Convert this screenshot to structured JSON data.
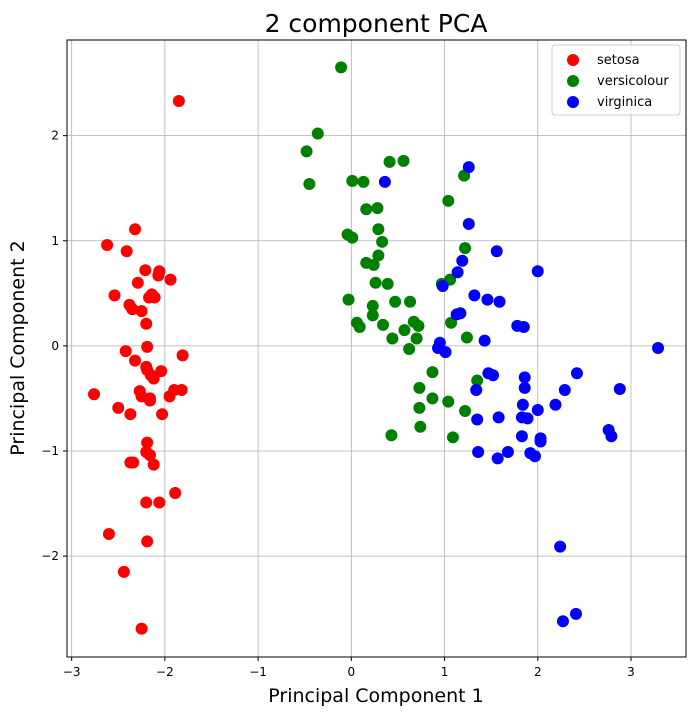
{
  "chart_data": {
    "type": "scatter",
    "title": "2 component PCA",
    "xlabel": "Principal Component 1",
    "ylabel": "Principal Component 2",
    "xlim": [
      -3.05,
      3.59
    ],
    "ylim": [
      -2.96,
      2.91
    ],
    "xticks": [
      -3,
      -2,
      -1,
      0,
      1,
      2,
      3
    ],
    "yticks": [
      -2,
      -1,
      0,
      1,
      2
    ],
    "xtick_labels": [
      "−3",
      "−2",
      "−1",
      "0",
      "1",
      "2",
      "3"
    ],
    "ytick_labels": [
      "−2",
      "−1",
      "0",
      "1",
      "2"
    ],
    "grid": true,
    "legend_position": "top-right",
    "series": [
      {
        "name": "setosa",
        "color": "#ff0000",
        "points": [
          [
            -1.85,
            2.33
          ],
          [
            -2.32,
            1.11
          ],
          [
            -2.62,
            0.96
          ],
          [
            -2.41,
            0.9
          ],
          [
            -2.21,
            0.72
          ],
          [
            -2.06,
            0.71
          ],
          [
            -2.07,
            0.67
          ],
          [
            -1.94,
            0.63
          ],
          [
            -2.29,
            0.6
          ],
          [
            -2.14,
            0.49
          ],
          [
            -2.11,
            0.46
          ],
          [
            -2.17,
            0.46
          ],
          [
            -2.54,
            0.48
          ],
          [
            -2.38,
            0.39
          ],
          [
            -2.35,
            0.35
          ],
          [
            -2.25,
            0.33
          ],
          [
            -2.2,
            0.21
          ],
          [
            -2.19,
            -0.01
          ],
          [
            -2.42,
            -0.05
          ],
          [
            -1.81,
            -0.09
          ],
          [
            -2.32,
            -0.14
          ],
          [
            -2.2,
            -0.2
          ],
          [
            -2.19,
            -0.23
          ],
          [
            -2.15,
            -0.28
          ],
          [
            -2.12,
            -0.31
          ],
          [
            -2.04,
            -0.24
          ],
          [
            -2.76,
            -0.46
          ],
          [
            -2.27,
            -0.43
          ],
          [
            -2.25,
            -0.48
          ],
          [
            -2.16,
            -0.52
          ],
          [
            -2.16,
            -0.5
          ],
          [
            -1.9,
            -0.42
          ],
          [
            -1.82,
            -0.42
          ],
          [
            -1.95,
            -0.48
          ],
          [
            -2.5,
            -0.59
          ],
          [
            -2.37,
            -0.65
          ],
          [
            -2.03,
            -0.65
          ],
          [
            -2.19,
            -0.92
          ],
          [
            -2.2,
            -1.01
          ],
          [
            -2.16,
            -1.04
          ],
          [
            -2.37,
            -1.11
          ],
          [
            -2.34,
            -1.11
          ],
          [
            -2.12,
            -1.13
          ],
          [
            -1.89,
            -1.4
          ],
          [
            -2.2,
            -1.49
          ],
          [
            -2.06,
            -1.49
          ],
          [
            -2.6,
            -1.79
          ],
          [
            -2.19,
            -1.86
          ],
          [
            -2.44,
            -2.15
          ],
          [
            -2.25,
            -2.69
          ]
        ]
      },
      {
        "name": "versicolour",
        "color": "#008000",
        "points": [
          [
            -0.11,
            2.65
          ],
          [
            -0.36,
            2.02
          ],
          [
            -0.48,
            1.85
          ],
          [
            -0.45,
            1.54
          ],
          [
            0.01,
            1.57
          ],
          [
            0.13,
            1.56
          ],
          [
            0.41,
            1.75
          ],
          [
            0.56,
            1.76
          ],
          [
            1.04,
            1.38
          ],
          [
            1.21,
            1.62
          ],
          [
            0.16,
            1.3
          ],
          [
            0.28,
            1.31
          ],
          [
            -0.04,
            1.06
          ],
          [
            0.01,
            1.03
          ],
          [
            0.29,
            1.11
          ],
          [
            0.33,
            0.99
          ],
          [
            0.29,
            0.86
          ],
          [
            0.16,
            0.79
          ],
          [
            0.24,
            0.77
          ],
          [
            1.22,
            0.93
          ],
          [
            0.26,
            0.6
          ],
          [
            0.39,
            0.59
          ],
          [
            1.06,
            0.63
          ],
          [
            0.97,
            0.59
          ],
          [
            -0.03,
            0.44
          ],
          [
            0.47,
            0.42
          ],
          [
            0.63,
            0.42
          ],
          [
            0.23,
            0.38
          ],
          [
            0.23,
            0.29
          ],
          [
            0.06,
            0.22
          ],
          [
            0.09,
            0.18
          ],
          [
            0.67,
            0.23
          ],
          [
            0.72,
            0.19
          ],
          [
            1.07,
            0.22
          ],
          [
            0.57,
            0.15
          ],
          [
            0.34,
            0.2
          ],
          [
            0.44,
            0.07
          ],
          [
            0.7,
            0.07
          ],
          [
            1.24,
            0.08
          ],
          [
            0.62,
            -0.03
          ],
          [
            0.87,
            -0.25
          ],
          [
            1.35,
            -0.33
          ],
          [
            0.73,
            -0.4
          ],
          [
            0.87,
            -0.5
          ],
          [
            1.04,
            -0.53
          ],
          [
            0.73,
            -0.59
          ],
          [
            1.22,
            -0.62
          ],
          [
            0.74,
            -0.77
          ],
          [
            0.43,
            -0.85
          ],
          [
            1.09,
            -0.87
          ]
        ]
      },
      {
        "name": "virginica",
        "color": "#0000ff",
        "points": [
          [
            0.36,
            1.56
          ],
          [
            1.26,
            1.7
          ],
          [
            1.26,
            1.16
          ],
          [
            1.56,
            0.9
          ],
          [
            2.0,
            0.71
          ],
          [
            1.19,
            0.81
          ],
          [
            1.14,
            0.7
          ],
          [
            0.98,
            0.57
          ],
          [
            1.32,
            0.48
          ],
          [
            1.46,
            0.44
          ],
          [
            1.59,
            0.42
          ],
          [
            1.13,
            0.3
          ],
          [
            1.17,
            0.31
          ],
          [
            1.78,
            0.19
          ],
          [
            1.85,
            0.18
          ],
          [
            1.43,
            0.05
          ],
          [
            0.95,
            0.03
          ],
          [
            0.93,
            -0.02
          ],
          [
            1.01,
            -0.06
          ],
          [
            3.29,
            -0.02
          ],
          [
            1.47,
            -0.26
          ],
          [
            1.52,
            -0.28
          ],
          [
            2.42,
            -0.26
          ],
          [
            1.86,
            -0.3
          ],
          [
            1.86,
            -0.4
          ],
          [
            1.34,
            -0.42
          ],
          [
            2.29,
            -0.42
          ],
          [
            2.88,
            -0.41
          ],
          [
            1.84,
            -0.56
          ],
          [
            2.19,
            -0.56
          ],
          [
            2.0,
            -0.61
          ],
          [
            1.35,
            -0.7
          ],
          [
            1.58,
            -0.68
          ],
          [
            1.83,
            -0.68
          ],
          [
            1.89,
            -0.69
          ],
          [
            2.76,
            -0.8
          ],
          [
            2.79,
            -0.86
          ],
          [
            1.83,
            -0.86
          ],
          [
            2.03,
            -0.88
          ],
          [
            2.03,
            -0.91
          ],
          [
            1.36,
            -1.01
          ],
          [
            1.68,
            -1.01
          ],
          [
            1.92,
            -1.02
          ],
          [
            1.97,
            -1.05
          ],
          [
            1.57,
            -1.07
          ],
          [
            2.24,
            -1.91
          ],
          [
            2.41,
            -2.55
          ],
          [
            2.27,
            -2.62
          ]
        ]
      }
    ]
  }
}
